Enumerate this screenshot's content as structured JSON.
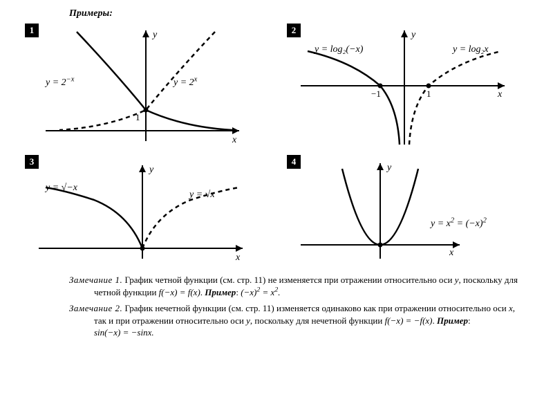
{
  "header": "Примеры:",
  "colors": {
    "bg": "#ffffff",
    "ink": "#000000"
  },
  "stroke": {
    "axis_width": 2,
    "curve_width": 2.5,
    "dash_pattern": "6 5"
  },
  "fonts": {
    "family": "Georgia, 'Times New Roman', serif",
    "label_size_pt": 14,
    "tick_size_pt": 13,
    "body_size_pt": 13
  },
  "panels": {
    "p1": {
      "badge": "1",
      "type": "line",
      "axes": {
        "x_label": "x",
        "y_label": "y"
      },
      "series": [
        {
          "label_html": "y = 2<sup>−x</sup>",
          "style": "solid",
          "color": "#000000"
        },
        {
          "label_html": "y = 2<sup>x</sup>",
          "style": "dashed",
          "color": "#000000"
        }
      ],
      "intercept_label": "1"
    },
    "p2": {
      "badge": "2",
      "type": "line",
      "axes": {
        "x_label": "x",
        "y_label": "y"
      },
      "series": [
        {
          "label_plain": "y = log₂(−x)",
          "style": "solid",
          "color": "#000000"
        },
        {
          "label_plain": "y = log₂x",
          "style": "dashed",
          "color": "#000000"
        }
      ],
      "x_ticks": {
        "neg": "−1",
        "pos": "1"
      }
    },
    "p3": {
      "badge": "3",
      "type": "line",
      "axes": {
        "x_label": "x",
        "y_label": "y"
      },
      "series": [
        {
          "label_plain": "y = √−x",
          "style": "solid",
          "color": "#000000"
        },
        {
          "label_plain": "y = √x",
          "style": "dashed",
          "color": "#000000"
        }
      ]
    },
    "p4": {
      "badge": "4",
      "type": "line",
      "axes": {
        "x_label": "x",
        "y_label": "y"
      },
      "series": [
        {
          "label_html": "y = x<sup>2</sup> = (−x)<sup>2</sup>",
          "style": "solid",
          "color": "#000000"
        }
      ]
    }
  },
  "notes": {
    "n1": {
      "title": "Замечание 1.",
      "body_a": "График четной функции (см. стр. 11) не изменяется при отражении относительно оси ",
      "axis_y": "y",
      "body_b": ", поскольку для четной функции ",
      "eq": "f(−x) = f(x)",
      "ex_label": "Пример",
      "ex_eq_html": "(−x)<sup>2</sup> = x<sup>2</sup>."
    },
    "n2": {
      "title": "Замечание 2.",
      "body_a": "График нечетной функции (см. стр. 11) изменяется одинаково как при отражении относительно оси ",
      "axis_x": "x",
      "body_b": ", так и при отражении относительно оси ",
      "axis_y": "y",
      "body_c": ", поскольку для нечетной функции ",
      "eq": "f(−x) = −f(x)",
      "ex_label": "Пример",
      "ex_eq": "sin(−x) = −sinx."
    }
  }
}
